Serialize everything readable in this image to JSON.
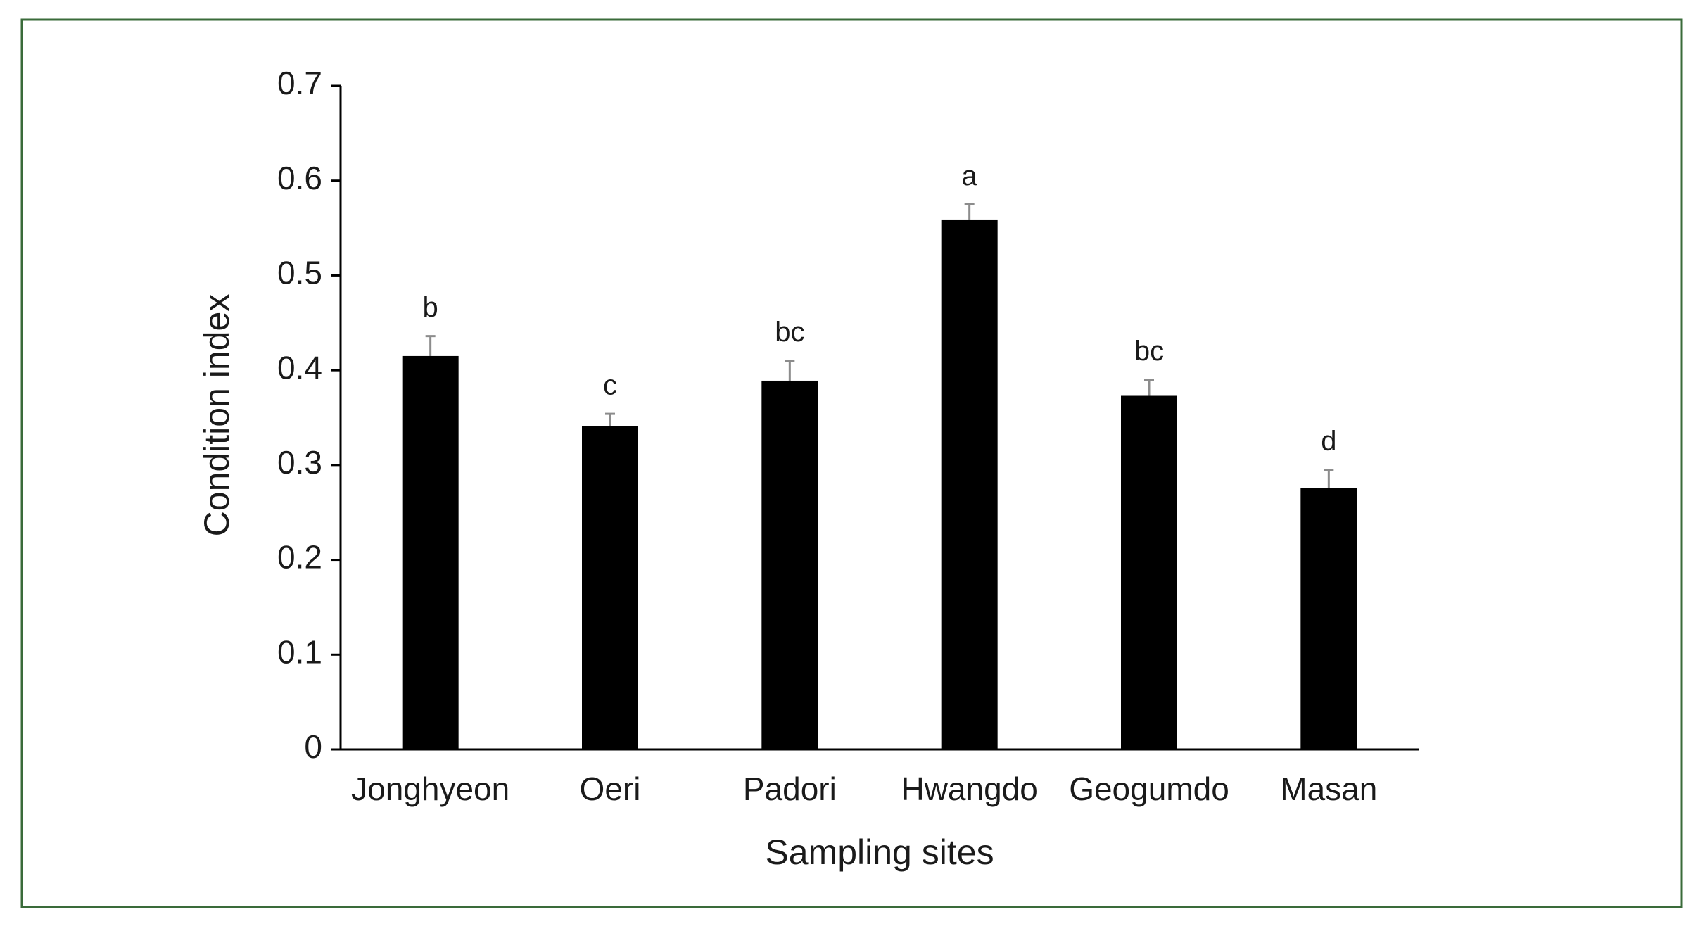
{
  "chart_data": {
    "type": "bar",
    "x_label": "Sampling sites",
    "y_label": "Condition index",
    "categories": [
      "Jonghyeon",
      "Oeri",
      "Padori",
      "Hwangdo",
      "Geogumdo",
      "Masan"
    ],
    "values": [
      0.415,
      0.341,
      0.389,
      0.559,
      0.373,
      0.276
    ],
    "errors": [
      0.021,
      0.013,
      0.021,
      0.016,
      0.017,
      0.019
    ],
    "annotations": [
      "b",
      "c",
      "bc",
      "a",
      "bc",
      "d"
    ],
    "color": "#000000",
    "error_color": "#8c8c8c",
    "ylim": [
      0,
      0.7
    ],
    "yticks": [
      0,
      0.1,
      0.2,
      0.3,
      0.4,
      0.5,
      0.6,
      0.7
    ],
    "grid": false
  }
}
